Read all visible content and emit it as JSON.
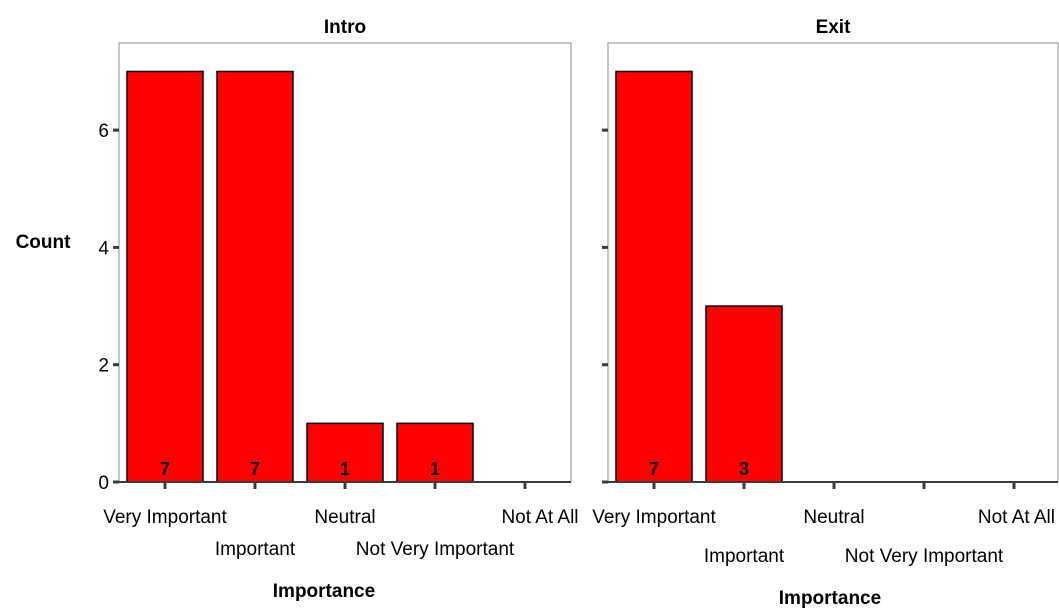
{
  "chart_data": {
    "type": "bar",
    "ylabel": "Count",
    "ylim": [
      0,
      7.4
    ],
    "yticks": [
      0,
      2,
      4,
      6
    ],
    "bar_color": "#ff0000",
    "categories": [
      "Very Important",
      "Important",
      "Neutral",
      "Not Very Important",
      "Not At All"
    ],
    "panels": [
      {
        "title": "Intro",
        "xlabel": "Importance",
        "values": [
          7,
          7,
          1,
          1,
          0
        ],
        "show_y_tick_labels": true
      },
      {
        "title": "Exit",
        "xlabel": "Importance",
        "values": [
          7,
          3,
          0,
          0,
          0
        ],
        "show_y_tick_labels": false
      }
    ]
  }
}
